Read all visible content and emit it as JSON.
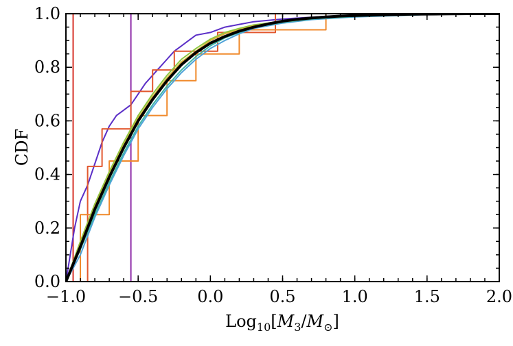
{
  "chart_data": {
    "type": "line",
    "title": "",
    "xlabel": "Log10[M3/M⊙]",
    "xlabel_parts": {
      "prefix": "Log",
      "sub1": "10",
      "open": "[",
      "m3": "M",
      "sub2": "3",
      "slash": "/",
      "msun": "M",
      "sub3": "⊙",
      "close": "]"
    },
    "ylabel": "CDF",
    "xlim": [
      -1.0,
      2.0
    ],
    "ylim": [
      0.0,
      1.0
    ],
    "x_ticks": [
      -1.0,
      -0.5,
      0.0,
      0.5,
      1.0,
      1.5,
      2.0
    ],
    "x_tick_labels": [
      "−1.0",
      "−0.5",
      "0.0",
      "0.5",
      "1.0",
      "1.5",
      "2.0"
    ],
    "y_ticks": [
      0.0,
      0.2,
      0.4,
      0.6,
      0.8,
      1.0
    ],
    "y_tick_labels": [
      "0.0",
      "0.2",
      "0.4",
      "0.6",
      "0.8",
      "1.0"
    ],
    "grid": false,
    "legend": "none",
    "series": [
      {
        "name": "theoretical-cdf",
        "color": "#000000",
        "role": "reference",
        "x": [
          -1.0,
          -0.9,
          -0.8,
          -0.7,
          -0.6,
          -0.5,
          -0.4,
          -0.3,
          -0.2,
          -0.1,
          0.0,
          0.1,
          0.2,
          0.3,
          0.4,
          0.5,
          0.6,
          0.7,
          0.8,
          0.9,
          1.0,
          1.2,
          1.4,
          1.6,
          1.8,
          2.0
        ],
        "y": [
          0.0,
          0.13,
          0.27,
          0.39,
          0.5,
          0.6,
          0.68,
          0.75,
          0.81,
          0.855,
          0.89,
          0.915,
          0.935,
          0.95,
          0.962,
          0.972,
          0.979,
          0.984,
          0.988,
          0.991,
          0.993,
          0.996,
          0.998,
          0.999,
          1.0,
          1.0
        ]
      },
      {
        "name": "sample-purple-3pt",
        "color": "#8e2ba8",
        "role": "sample",
        "x": [
          -0.95,
          -0.55,
          -0.55
        ],
        "y": [
          0.0,
          0.0,
          1.0
        ]
      },
      {
        "name": "sample-red-2pt",
        "color": "#d7352b",
        "role": "sample",
        "x": [
          -0.95,
          -0.95,
          0.12
        ],
        "y": [
          0.0,
          1.0,
          1.0
        ]
      },
      {
        "name": "sample-violet",
        "color": "#5b2fc7",
        "role": "sample",
        "x": [
          -1.0,
          -0.97,
          -0.94,
          -0.9,
          -0.85,
          -0.8,
          -0.75,
          -0.7,
          -0.65,
          -0.6,
          -0.55,
          -0.5,
          -0.45,
          -0.4,
          -0.35,
          -0.3,
          -0.25,
          -0.2,
          -0.15,
          -0.1,
          0.0,
          0.1,
          0.2,
          0.3,
          0.5,
          0.8,
          1.2
        ],
        "y": [
          0.0,
          0.1,
          0.2,
          0.3,
          0.36,
          0.44,
          0.52,
          0.58,
          0.62,
          0.64,
          0.66,
          0.7,
          0.74,
          0.77,
          0.8,
          0.83,
          0.86,
          0.88,
          0.9,
          0.92,
          0.93,
          0.95,
          0.96,
          0.97,
          0.98,
          0.99,
          1.0
        ]
      },
      {
        "name": "sample-orange-red-step",
        "color": "#e2572e",
        "role": "sample",
        "x": [
          -1.0,
          -0.85,
          -0.85,
          -0.75,
          -0.75,
          -0.55,
          -0.55,
          -0.4,
          -0.4,
          -0.25,
          -0.25,
          0.05,
          0.05,
          0.45,
          0.45,
          1.2
        ],
        "y": [
          0.0,
          0.0,
          0.43,
          0.43,
          0.57,
          0.57,
          0.71,
          0.71,
          0.79,
          0.79,
          0.86,
          0.86,
          0.93,
          0.93,
          1.0,
          1.0
        ]
      },
      {
        "name": "sample-orange-step",
        "color": "#f08a2c",
        "role": "sample",
        "x": [
          -1.0,
          -0.9,
          -0.9,
          -0.7,
          -0.7,
          -0.5,
          -0.5,
          -0.3,
          -0.3,
          -0.1,
          -0.1,
          0.2,
          0.2,
          0.8,
          0.8,
          1.3
        ],
        "y": [
          0.0,
          0.0,
          0.25,
          0.25,
          0.45,
          0.45,
          0.62,
          0.62,
          0.75,
          0.75,
          0.85,
          0.85,
          0.94,
          0.94,
          1.0,
          1.0
        ]
      },
      {
        "name": "sample-blue",
        "color": "#4fa3d9",
        "role": "sample",
        "x": [
          -1.0,
          -0.9,
          -0.8,
          -0.7,
          -0.6,
          -0.5,
          -0.4,
          -0.3,
          -0.2,
          -0.1,
          0.0,
          0.1,
          0.2,
          0.3,
          0.5,
          0.7,
          1.0,
          1.5,
          2.0
        ],
        "y": [
          0.0,
          0.1,
          0.24,
          0.36,
          0.47,
          0.57,
          0.65,
          0.72,
          0.78,
          0.83,
          0.87,
          0.9,
          0.925,
          0.945,
          0.965,
          0.978,
          0.988,
          0.997,
          1.0
        ]
      },
      {
        "name": "sample-green",
        "color": "#8ec63f",
        "role": "sample",
        "x": [
          -1.0,
          -0.9,
          -0.8,
          -0.7,
          -0.6,
          -0.5,
          -0.4,
          -0.3,
          -0.2,
          -0.1,
          0.0,
          0.1,
          0.2,
          0.3,
          0.5,
          0.7,
          1.0,
          1.5,
          2.0
        ],
        "y": [
          0.0,
          0.15,
          0.29,
          0.41,
          0.52,
          0.62,
          0.7,
          0.77,
          0.83,
          0.87,
          0.905,
          0.93,
          0.945,
          0.958,
          0.972,
          0.982,
          0.99,
          0.998,
          1.0
        ]
      },
      {
        "name": "sample-teal",
        "color": "#3fb5a5",
        "role": "sample",
        "x": [
          -1.0,
          -0.9,
          -0.8,
          -0.7,
          -0.6,
          -0.5,
          -0.4,
          -0.3,
          -0.2,
          -0.1,
          0.0,
          0.1,
          0.2,
          0.3,
          0.5,
          0.7,
          1.0,
          1.5,
          2.0
        ],
        "y": [
          0.0,
          0.12,
          0.25,
          0.37,
          0.48,
          0.58,
          0.66,
          0.73,
          0.79,
          0.84,
          0.88,
          0.91,
          0.93,
          0.948,
          0.968,
          0.98,
          0.99,
          0.997,
          1.0
        ]
      },
      {
        "name": "sample-gold",
        "color": "#d9b13b",
        "role": "sample",
        "x": [
          -1.0,
          -0.9,
          -0.8,
          -0.7,
          -0.6,
          -0.5,
          -0.4,
          -0.3,
          -0.2,
          -0.1,
          0.0,
          0.1,
          0.2,
          0.3,
          0.5,
          0.7,
          1.0,
          1.5
        ],
        "y": [
          0.0,
          0.14,
          0.28,
          0.4,
          0.51,
          0.61,
          0.69,
          0.76,
          0.82,
          0.86,
          0.9,
          0.925,
          0.94,
          0.955,
          0.97,
          0.982,
          0.992,
          1.0
        ]
      }
    ]
  }
}
